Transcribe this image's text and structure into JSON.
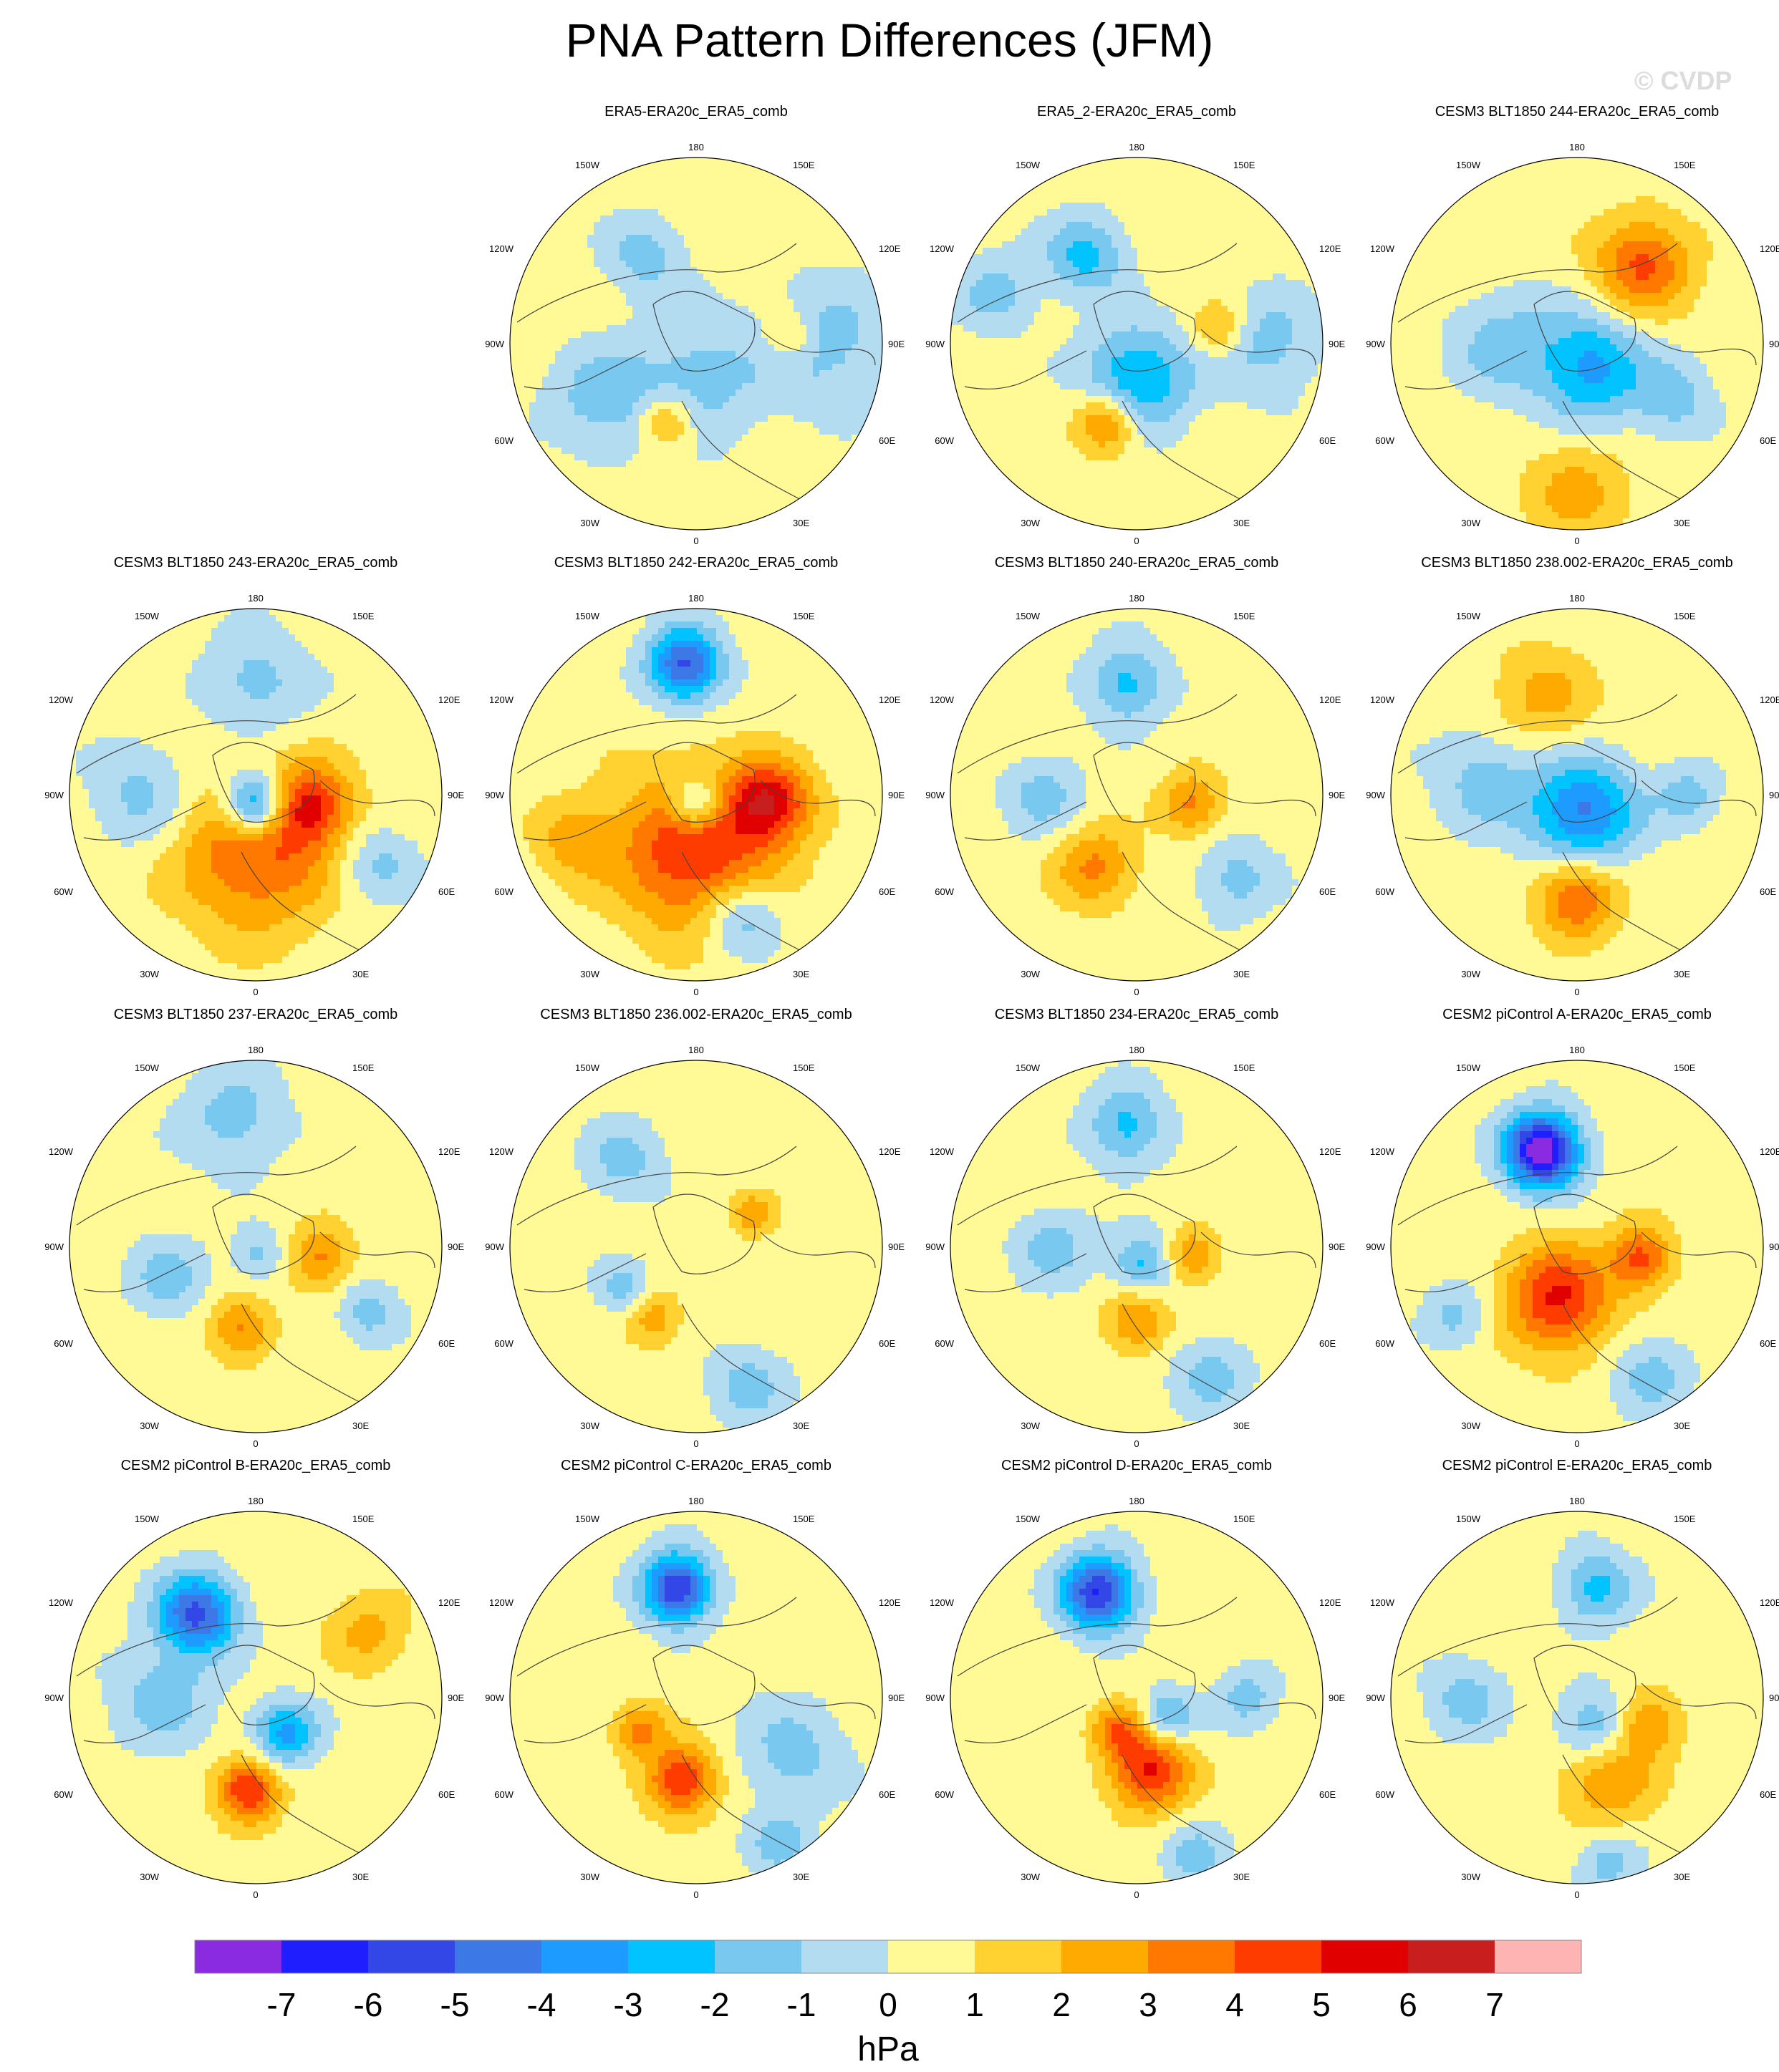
{
  "title": "PNA Pattern Differences (JFM)",
  "watermark": "© CVDP",
  "colorbar": {
    "unit": "hPa",
    "ticks": [
      "-7",
      "-6",
      "-5",
      "-4",
      "-3",
      "-2",
      "-1",
      "0",
      "1",
      "2",
      "3",
      "4",
      "5",
      "6",
      "7"
    ],
    "colors": [
      "#8a2be2",
      "#1e1eff",
      "#3247e6",
      "#3c78e6",
      "#1e9bff",
      "#00c3ff",
      "#78c8f0",
      "#b4dcf0",
      "#fffa96",
      "#ffd232",
      "#ffaa00",
      "#ff7800",
      "#ff3c00",
      "#e10000",
      "#c81e1e",
      "#ffb4b4"
    ]
  },
  "map_labels": {
    "top": "180",
    "bottom": "0",
    "left": "90W",
    "right": "90E",
    "upper_left_1": "150W",
    "upper_left_2": "120W",
    "upper_right_1": "150E",
    "upper_right_2": "120E",
    "lower_left_1": "60W",
    "lower_left_2": "30W",
    "lower_right_1": "60E",
    "lower_right_2": "30E"
  },
  "panels": [
    {
      "title": "ERA5-ERA20c_ERA5_comb",
      "blobs": [
        {
          "lon": 210,
          "r": 0.55,
          "s": 0.15,
          "v": -1
        },
        {
          "lon": 0,
          "r": 0.2,
          "s": 0.25,
          "v": -1
        },
        {
          "lon": 95,
          "r": 0.5,
          "s": 0.1,
          "v": 1
        },
        {
          "lon": 340,
          "r": 0.45,
          "s": 0.1,
          "v": 1.5
        },
        {
          "lon": 90,
          "r": 0.7,
          "s": 0.25,
          "v": -1
        },
        {
          "lon": 300,
          "r": 0.6,
          "s": 0.2,
          "v": -1
        }
      ]
    },
    {
      "title": "ERA5_2-ERA20c_ERA5_comb",
      "blobs": [
        {
          "lon": 210,
          "r": 0.55,
          "s": 0.15,
          "v": -1.5
        },
        {
          "lon": 0,
          "r": 0.2,
          "s": 0.2,
          "v": -2
        },
        {
          "lon": 100,
          "r": 0.45,
          "s": 0.1,
          "v": 1.2
        },
        {
          "lon": 340,
          "r": 0.45,
          "s": 0.12,
          "v": 2
        },
        {
          "lon": 90,
          "r": 0.7,
          "s": 0.2,
          "v": -1
        },
        {
          "lon": 250,
          "r": 0.8,
          "s": 0.15,
          "v": -1
        }
      ]
    },
    {
      "title": "CESM3 BLT1850 244-ERA20c_ERA5_comb",
      "blobs": [
        {
          "lon": 140,
          "r": 0.55,
          "s": 0.18,
          "v": 2
        },
        {
          "lon": 30,
          "r": 0.15,
          "s": 0.2,
          "v": -2
        },
        {
          "lon": 270,
          "r": 0.4,
          "s": 0.2,
          "v": -1
        },
        {
          "lon": 0,
          "r": 0.8,
          "s": 0.2,
          "v": 1
        },
        {
          "lon": 60,
          "r": 0.6,
          "s": 0.15,
          "v": -1
        }
      ]
    },
    {
      "title": "CESM3 BLT1850 243-ERA20c_ERA5_comb",
      "blobs": [
        {
          "lon": 180,
          "r": 0.6,
          "s": 0.2,
          "v": -1
        },
        {
          "lon": 0,
          "r": 0.3,
          "s": 0.3,
          "v": 2
        },
        {
          "lon": 80,
          "r": 0.3,
          "s": 0.15,
          "v": 2
        },
        {
          "lon": 60,
          "r": 0.75,
          "s": 0.15,
          "v": -1
        },
        {
          "lon": 270,
          "r": 0.6,
          "s": 0.2,
          "v": -1
        },
        {
          "lon": 0,
          "r": 0.05,
          "s": 0.12,
          "v": -3
        }
      ]
    },
    {
      "title": "CESM3 BLT1850 242-ERA20c_ERA5_comb",
      "blobs": [
        {
          "lon": 185,
          "r": 0.7,
          "s": 0.14,
          "v": -3
        },
        {
          "lon": 0,
          "r": 0.3,
          "s": 0.3,
          "v": 2.5
        },
        {
          "lon": 85,
          "r": 0.4,
          "s": 0.15,
          "v": 2.5
        },
        {
          "lon": 20,
          "r": 0.7,
          "s": 0.15,
          "v": -1.5
        },
        {
          "lon": 290,
          "r": 0.7,
          "s": 0.15,
          "v": 1
        },
        {
          "lon": 0,
          "r": 0.05,
          "s": 0.1,
          "v": -2
        }
      ]
    },
    {
      "title": "CESM3 BLT1850 240-ERA20c_ERA5_comb",
      "blobs": [
        {
          "lon": 185,
          "r": 0.6,
          "s": 0.15,
          "v": -1.5
        },
        {
          "lon": 330,
          "r": 0.45,
          "s": 0.15,
          "v": 1.5
        },
        {
          "lon": 80,
          "r": 0.3,
          "s": 0.12,
          "v": 1.5
        },
        {
          "lon": 50,
          "r": 0.7,
          "s": 0.15,
          "v": -1
        },
        {
          "lon": 270,
          "r": 0.5,
          "s": 0.15,
          "v": -1
        }
      ]
    },
    {
      "title": "CESM3 BLT1850 238.002-ERA20c_ERA5_comb",
      "blobs": [
        {
          "lon": 20,
          "r": 0.1,
          "s": 0.2,
          "v": -2.5
        },
        {
          "lon": 0,
          "r": 0.55,
          "s": 0.15,
          "v": 2
        },
        {
          "lon": 200,
          "r": 0.55,
          "s": 0.2,
          "v": 1
        },
        {
          "lon": 260,
          "r": 0.5,
          "s": 0.2,
          "v": -1
        },
        {
          "lon": 90,
          "r": 0.6,
          "s": 0.12,
          "v": -1
        }
      ]
    },
    {
      "title": "CESM3 BLT1850 237-ERA20c_ERA5_comb",
      "blobs": [
        {
          "lon": 190,
          "r": 0.7,
          "s": 0.2,
          "v": -1
        },
        {
          "lon": 350,
          "r": 0.45,
          "s": 0.12,
          "v": 1.5
        },
        {
          "lon": 80,
          "r": 0.35,
          "s": 0.12,
          "v": 1.5
        },
        {
          "lon": 60,
          "r": 0.7,
          "s": 0.12,
          "v": -1
        },
        {
          "lon": 290,
          "r": 0.5,
          "s": 0.15,
          "v": -1
        },
        {
          "lon": 20,
          "r": 0.05,
          "s": 0.1,
          "v": -1
        }
      ]
    },
    {
      "title": "CESM3 BLT1850 236.002-ERA20c_ERA5_comb",
      "blobs": [
        {
          "lon": 220,
          "r": 0.6,
          "s": 0.15,
          "v": -1
        },
        {
          "lon": 20,
          "r": 0.8,
          "s": 0.15,
          "v": -1
        },
        {
          "lon": 330,
          "r": 0.45,
          "s": 0.1,
          "v": 1.2
        },
        {
          "lon": 120,
          "r": 0.35,
          "s": 0.08,
          "v": 1.2
        },
        {
          "lon": 300,
          "r": 0.45,
          "s": 0.1,
          "v": -1
        }
      ]
    },
    {
      "title": "CESM3 BLT1850 234-ERA20c_ERA5_comb",
      "blobs": [
        {
          "lon": 185,
          "r": 0.65,
          "s": 0.15,
          "v": -1.5
        },
        {
          "lon": 0,
          "r": 0.4,
          "s": 0.12,
          "v": 1.5
        },
        {
          "lon": 80,
          "r": 0.3,
          "s": 0.1,
          "v": 1.5
        },
        {
          "lon": 20,
          "r": 0.1,
          "s": 0.12,
          "v": -1.5
        },
        {
          "lon": 30,
          "r": 0.8,
          "s": 0.15,
          "v": -1
        },
        {
          "lon": 270,
          "r": 0.45,
          "s": 0.15,
          "v": -1
        }
      ]
    },
    {
      "title": "CESM2 piControl A-ERA20c_ERA5_comb",
      "blobs": [
        {
          "lon": 200,
          "r": 0.55,
          "s": 0.14,
          "v": -4.5
        },
        {
          "lon": 340,
          "r": 0.3,
          "s": 0.2,
          "v": 2.5
        },
        {
          "lon": 80,
          "r": 0.35,
          "s": 0.12,
          "v": 2
        },
        {
          "lon": 300,
          "r": 0.75,
          "s": 0.12,
          "v": -1
        },
        {
          "lon": 30,
          "r": 0.8,
          "s": 0.15,
          "v": -1
        }
      ]
    },
    {
      "title": "CESM2 piControl B-ERA20c_ERA5_comb",
      "blobs": [
        {
          "lon": 215,
          "r": 0.55,
          "s": 0.15,
          "v": -3
        },
        {
          "lon": 40,
          "r": 0.25,
          "s": 0.12,
          "v": -2
        },
        {
          "lon": 355,
          "r": 0.5,
          "s": 0.12,
          "v": 2.5
        },
        {
          "lon": 120,
          "r": 0.7,
          "s": 0.15,
          "v": 1
        },
        {
          "lon": 270,
          "r": 0.5,
          "s": 0.2,
          "v": -1
        }
      ]
    },
    {
      "title": "CESM2 piControl C-ERA20c_ERA5_comb",
      "blobs": [
        {
          "lon": 190,
          "r": 0.6,
          "s": 0.13,
          "v": -3.5
        },
        {
          "lon": 350,
          "r": 0.45,
          "s": 0.13,
          "v": 2.5
        },
        {
          "lon": 300,
          "r": 0.35,
          "s": 0.1,
          "v": 1.5
        },
        {
          "lon": 60,
          "r": 0.6,
          "s": 0.2,
          "v": -1
        },
        {
          "lon": 30,
          "r": 0.9,
          "s": 0.12,
          "v": -1
        }
      ]
    },
    {
      "title": "CESM2 piControl D-ERA20c_ERA5_comb",
      "blobs": [
        {
          "lon": 200,
          "r": 0.6,
          "s": 0.14,
          "v": -3.5
        },
        {
          "lon": 10,
          "r": 0.4,
          "s": 0.15,
          "v": 2.5
        },
        {
          "lon": 60,
          "r": 0.2,
          "s": 0.1,
          "v": -1.5
        },
        {
          "lon": 330,
          "r": 0.2,
          "s": 0.1,
          "v": 1.5
        },
        {
          "lon": 90,
          "r": 0.6,
          "s": 0.12,
          "v": -1
        },
        {
          "lon": 20,
          "r": 0.9,
          "s": 0.12,
          "v": -1
        }
      ]
    },
    {
      "title": "CESM2 piControl E-ERA20c_ERA5_comb",
      "blobs": [
        {
          "lon": 170,
          "r": 0.6,
          "s": 0.14,
          "v": -1.5
        },
        {
          "lon": 30,
          "r": 0.2,
          "s": 0.15,
          "v": -1.5
        },
        {
          "lon": 20,
          "r": 0.45,
          "s": 0.18,
          "v": 1.5
        },
        {
          "lon": 70,
          "r": 0.4,
          "s": 0.12,
          "v": 1.5
        },
        {
          "lon": 270,
          "r": 0.6,
          "s": 0.15,
          "v": -1
        },
        {
          "lon": 10,
          "r": 0.9,
          "s": 0.12,
          "v": -1
        }
      ]
    }
  ]
}
